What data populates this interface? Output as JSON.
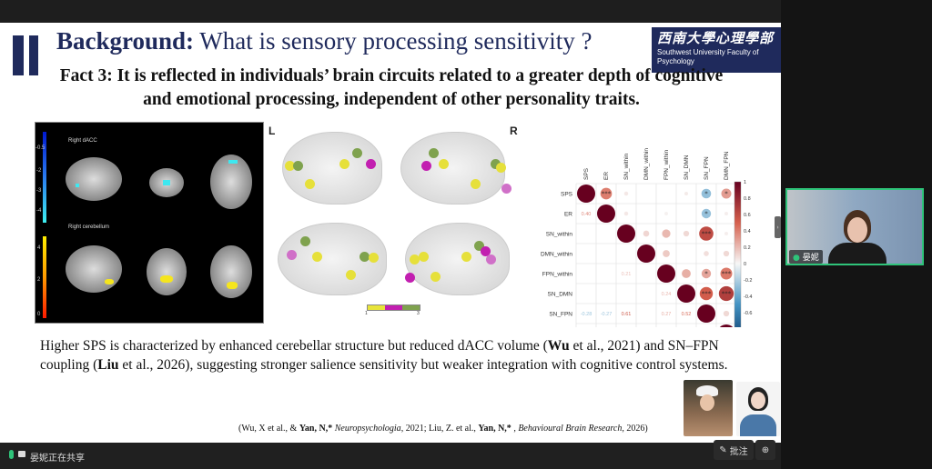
{
  "slide": {
    "title_bold": "Background:",
    "title_rest": " What is sensory processing sensitivity ?",
    "logo_cn": "西南大學心理學部",
    "logo_en": "Southwest University Faculty of Psychology",
    "fact_line1": "Fact 3: It is reflected in individuals’ brain circuits related to a greater depth of cognitive",
    "fact_line2": "and emotional processing, independent of other personality traits.",
    "mri": {
      "label_top": "Right dACC",
      "label_bottom": "Right cerebellum",
      "ticks_top": [
        "-0.5",
        "-2",
        "-3",
        "-4"
      ],
      "ticks_bottom": [
        "4",
        "2",
        "0"
      ]
    },
    "nodes": {
      "left_label": "L",
      "right_label": "R",
      "legend_min": "1",
      "legend_max": "3",
      "legend_colors": [
        "#e8e43a",
        "#c21fb0",
        "#7fa24e"
      ]
    },
    "body": {
      "p1": "Higher SPS is characterized by enhanced cerebellar structure but reduced dACC volume (",
      "b1": "Wu",
      "p2": " et al., 2021) and SN–FPN coupling (",
      "b2": "Liu",
      "p3": " et al., 2026), suggesting stronger salience sensitivity but weaker integration with cognitive control systems."
    },
    "reference": {
      "r1": "(Wu, X et al., & ",
      "b1": "Yan, N,*",
      "i1": " Neuropsychologia",
      "r2": ", 2021; Liu, Z. et al., ",
      "b2": "Yan, N,*",
      "r3": " , ",
      "i2": "Behavioural Brain Research",
      "r4": ", 2026)"
    }
  },
  "chart_data": {
    "type": "heatmap",
    "variables": [
      "SPS",
      "ER",
      "SN_within",
      "DMN_within",
      "FPN_within",
      "SN_DMN",
      "SN_FPN",
      "DMN_FPN"
    ],
    "colorbar_ticks": [
      "1",
      "0.8",
      "0.6",
      "0.4",
      "0.2",
      "0",
      "-0.2",
      "-0.4",
      "-0.6",
      "-0.8",
      "-1"
    ],
    "colorbar_range": [
      -1,
      1
    ],
    "upper_circles": [
      {
        "row": "SPS",
        "col": "ER",
        "r": 0.4,
        "sig": "***"
      },
      {
        "row": "SPS",
        "col": "SN_within",
        "r": 0.05,
        "sig": ""
      },
      {
        "row": "SPS",
        "col": "SN_DMN",
        "r": 0.04,
        "sig": ""
      },
      {
        "row": "SPS",
        "col": "SN_FPN",
        "r": -0.28,
        "sig": "*"
      },
      {
        "row": "SPS",
        "col": "DMN_FPN",
        "r": 0.3,
        "sig": "*"
      },
      {
        "row": "ER",
        "col": "SN_within",
        "r": 0.05,
        "sig": ""
      },
      {
        "row": "ER",
        "col": "FPN_within",
        "r": 0.02,
        "sig": ""
      },
      {
        "row": "ER",
        "col": "SN_FPN",
        "r": -0.27,
        "sig": "*"
      },
      {
        "row": "ER",
        "col": "DMN_FPN",
        "r": 0.03,
        "sig": ""
      },
      {
        "row": "SN_within",
        "col": "DMN_within",
        "r": 0.11,
        "sig": ""
      },
      {
        "row": "SN_within",
        "col": "FPN_within",
        "r": 0.21,
        "sig": ""
      },
      {
        "row": "SN_within",
        "col": "SN_DMN",
        "r": 0.1,
        "sig": ""
      },
      {
        "row": "SN_within",
        "col": "SN_FPN",
        "r": 0.61,
        "sig": "***"
      },
      {
        "row": "SN_within",
        "col": "DMN_FPN",
        "r": 0.03,
        "sig": ""
      },
      {
        "row": "DMN_within",
        "col": "FPN_within",
        "r": 0.15,
        "sig": ""
      },
      {
        "row": "DMN_within",
        "col": "SN_FPN",
        "r": 0.08,
        "sig": ""
      },
      {
        "row": "DMN_within",
        "col": "DMN_FPN",
        "r": 0.1,
        "sig": ""
      },
      {
        "row": "FPN_within",
        "col": "SN_DMN",
        "r": 0.24,
        "sig": ""
      },
      {
        "row": "FPN_within",
        "col": "SN_FPN",
        "r": 0.27,
        "sig": "*"
      },
      {
        "row": "FPN_within",
        "col": "DMN_FPN",
        "r": 0.42,
        "sig": "***"
      },
      {
        "row": "SN_DMN",
        "col": "SN_FPN",
        "r": 0.52,
        "sig": "***"
      },
      {
        "row": "SN_DMN",
        "col": "DMN_FPN",
        "r": 0.67,
        "sig": "***"
      },
      {
        "row": "SN_FPN",
        "col": "DMN_FPN",
        "r": 0.1,
        "sig": ""
      }
    ],
    "lower_labels": [
      {
        "row": "ER",
        "col": "SPS",
        "text": "0.40"
      },
      {
        "row": "FPN_within",
        "col": "SN_within",
        "text": "0.21"
      },
      {
        "row": "SN_DMN",
        "col": "FPN_within",
        "text": "0.24"
      },
      {
        "row": "SN_FPN",
        "col": "SPS",
        "text": "-0.28"
      },
      {
        "row": "SN_FPN",
        "col": "ER",
        "text": "-0.27"
      },
      {
        "row": "SN_FPN",
        "col": "SN_within",
        "text": "0.61"
      },
      {
        "row": "SN_FPN",
        "col": "FPN_within",
        "text": "0.27"
      },
      {
        "row": "SN_FPN",
        "col": "SN_DMN",
        "text": "0.52"
      },
      {
        "row": "DMN_FPN",
        "col": "SPS",
        "text": "0.30"
      },
      {
        "row": "DMN_FPN",
        "col": "FPN_within",
        "text": "0.42"
      },
      {
        "row": "DMN_FPN",
        "col": "SN_DMN",
        "text": "0.67"
      }
    ]
  },
  "meeting": {
    "sharing_status": "晏妮正在共享",
    "participant_name": "晏妮",
    "annotate_label": "批注",
    "accent": "#2fc47a"
  }
}
